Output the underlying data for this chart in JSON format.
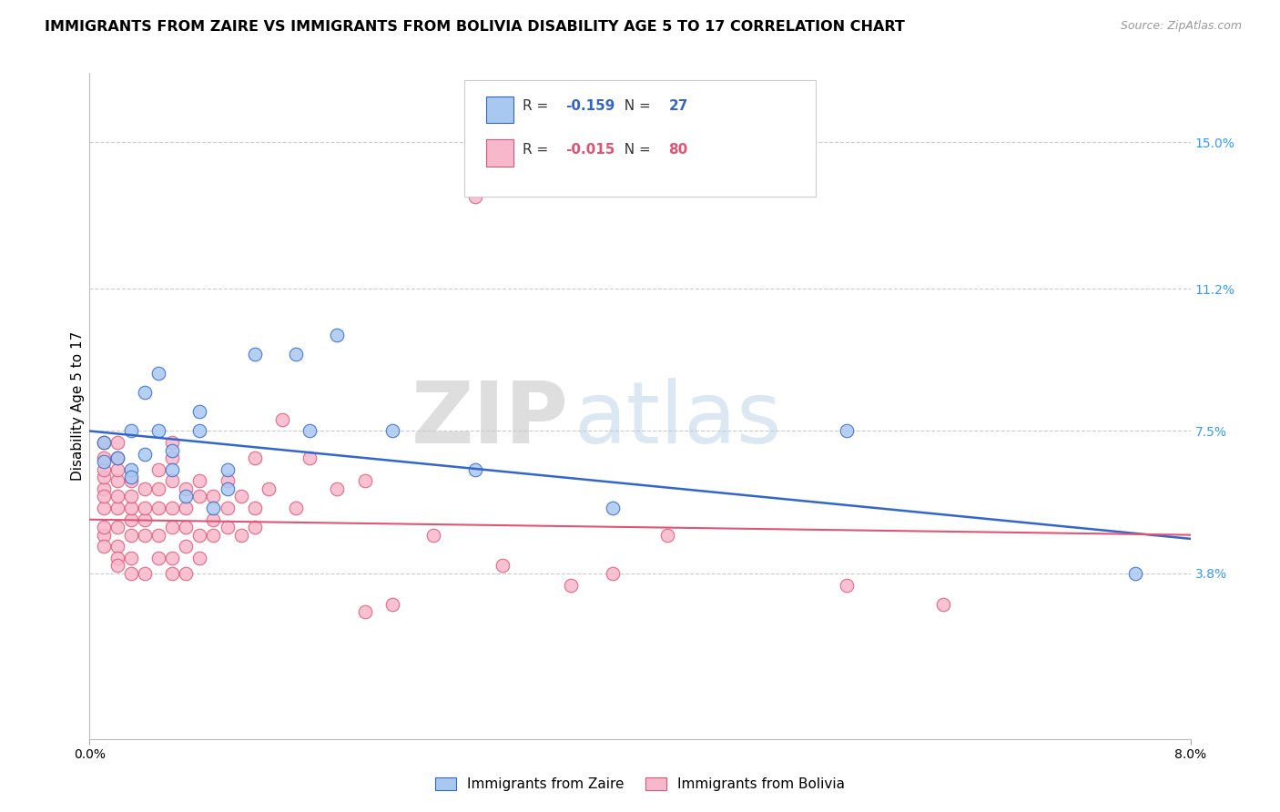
{
  "title": "IMMIGRANTS FROM ZAIRE VS IMMIGRANTS FROM BOLIVIA DISABILITY AGE 5 TO 17 CORRELATION CHART",
  "source": "Source: ZipAtlas.com",
  "ylabel": "Disability Age 5 to 17",
  "xlim": [
    0.0,
    0.08
  ],
  "ylim": [
    -0.005,
    0.168
  ],
  "xtick_labels": [
    "0.0%",
    "8.0%"
  ],
  "xtick_positions": [
    0.0,
    0.08
  ],
  "ytick_positions": [
    0.038,
    0.075,
    0.112,
    0.15
  ],
  "ytick_labels": [
    "3.8%",
    "7.5%",
    "11.2%",
    "15.0%"
  ],
  "grid_color": "#cccccc",
  "background_color": "#ffffff",
  "zaire_color": "#a8c8f0",
  "bolivia_color": "#f8b8cc",
  "zaire_line_color": "#3366cc",
  "bolivia_line_color": "#e05575",
  "zaire_R": -0.159,
  "zaire_N": 27,
  "bolivia_R": -0.015,
  "bolivia_N": 80,
  "legend_label_zaire": "Immigrants from Zaire",
  "legend_label_bolivia": "Immigrants from Bolivia",
  "title_fontsize": 11.5,
  "axis_label_fontsize": 11,
  "tick_fontsize": 10,
  "legend_fontsize": 11,
  "watermark_zip": "ZIP",
  "watermark_atlas": "atlas",
  "zaire_x": [
    0.001,
    0.001,
    0.002,
    0.003,
    0.003,
    0.003,
    0.004,
    0.004,
    0.005,
    0.005,
    0.006,
    0.006,
    0.007,
    0.008,
    0.008,
    0.009,
    0.01,
    0.01,
    0.012,
    0.015,
    0.016,
    0.018,
    0.022,
    0.028,
    0.038,
    0.055,
    0.076
  ],
  "zaire_y": [
    0.072,
    0.067,
    0.068,
    0.065,
    0.075,
    0.063,
    0.085,
    0.069,
    0.09,
    0.075,
    0.065,
    0.07,
    0.058,
    0.075,
    0.08,
    0.055,
    0.065,
    0.06,
    0.095,
    0.095,
    0.075,
    0.1,
    0.075,
    0.065,
    0.055,
    0.075,
    0.038
  ],
  "bolivia_x": [
    0.001,
    0.001,
    0.001,
    0.001,
    0.001,
    0.001,
    0.001,
    0.001,
    0.001,
    0.001,
    0.002,
    0.002,
    0.002,
    0.002,
    0.002,
    0.002,
    0.002,
    0.002,
    0.002,
    0.002,
    0.003,
    0.003,
    0.003,
    0.003,
    0.003,
    0.003,
    0.003,
    0.004,
    0.004,
    0.004,
    0.004,
    0.004,
    0.005,
    0.005,
    0.005,
    0.005,
    0.005,
    0.006,
    0.006,
    0.006,
    0.006,
    0.006,
    0.006,
    0.006,
    0.007,
    0.007,
    0.007,
    0.007,
    0.007,
    0.008,
    0.008,
    0.008,
    0.008,
    0.009,
    0.009,
    0.009,
    0.01,
    0.01,
    0.01,
    0.011,
    0.011,
    0.012,
    0.012,
    0.012,
    0.013,
    0.014,
    0.015,
    0.016,
    0.018,
    0.02,
    0.02,
    0.022,
    0.025,
    0.028,
    0.03,
    0.035,
    0.038,
    0.042,
    0.055,
    0.062
  ],
  "bolivia_y": [
    0.06,
    0.063,
    0.065,
    0.068,
    0.072,
    0.055,
    0.058,
    0.048,
    0.05,
    0.045,
    0.05,
    0.055,
    0.058,
    0.062,
    0.065,
    0.068,
    0.072,
    0.045,
    0.042,
    0.04,
    0.048,
    0.052,
    0.055,
    0.058,
    0.062,
    0.042,
    0.038,
    0.048,
    0.052,
    0.055,
    0.06,
    0.038,
    0.042,
    0.048,
    0.055,
    0.06,
    0.065,
    0.038,
    0.042,
    0.05,
    0.055,
    0.062,
    0.068,
    0.072,
    0.045,
    0.05,
    0.055,
    0.06,
    0.038,
    0.042,
    0.048,
    0.058,
    0.062,
    0.048,
    0.052,
    0.058,
    0.05,
    0.055,
    0.062,
    0.048,
    0.058,
    0.05,
    0.055,
    0.068,
    0.06,
    0.078,
    0.055,
    0.068,
    0.06,
    0.062,
    0.028,
    0.03,
    0.048,
    0.136,
    0.04,
    0.035,
    0.038,
    0.048,
    0.035,
    0.03
  ]
}
